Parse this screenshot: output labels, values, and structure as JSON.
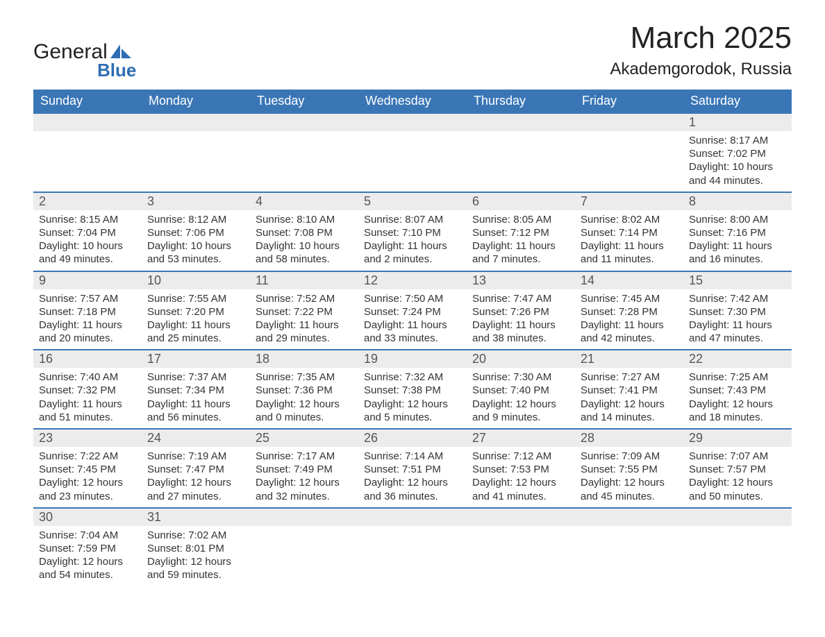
{
  "logo": {
    "word1": "General",
    "word2": "Blue",
    "triangle_color": "#2f6db3",
    "word2_color": "#2f6db3",
    "word1_color": "#222222"
  },
  "header": {
    "month_title": "March 2025",
    "location": "Akademgorodok, Russia"
  },
  "colors": {
    "header_bg": "#3a76b6",
    "header_text": "#ffffff",
    "row_divider": "#3a76b6",
    "daynum_bg": "#ececec",
    "body_text": "#333333",
    "background": "#ffffff"
  },
  "typography": {
    "title_fontsize": 44,
    "location_fontsize": 24,
    "weekday_fontsize": 18,
    "daynum_fontsize": 18,
    "cell_fontsize": 15
  },
  "weekdays": [
    "Sunday",
    "Monday",
    "Tuesday",
    "Wednesday",
    "Thursday",
    "Friday",
    "Saturday"
  ],
  "weeks": [
    [
      null,
      null,
      null,
      null,
      null,
      null,
      {
        "day": "1",
        "sunrise": "Sunrise: 8:17 AM",
        "sunset": "Sunset: 7:02 PM",
        "daylight1": "Daylight: 10 hours",
        "daylight2": "and 44 minutes."
      }
    ],
    [
      {
        "day": "2",
        "sunrise": "Sunrise: 8:15 AM",
        "sunset": "Sunset: 7:04 PM",
        "daylight1": "Daylight: 10 hours",
        "daylight2": "and 49 minutes."
      },
      {
        "day": "3",
        "sunrise": "Sunrise: 8:12 AM",
        "sunset": "Sunset: 7:06 PM",
        "daylight1": "Daylight: 10 hours",
        "daylight2": "and 53 minutes."
      },
      {
        "day": "4",
        "sunrise": "Sunrise: 8:10 AM",
        "sunset": "Sunset: 7:08 PM",
        "daylight1": "Daylight: 10 hours",
        "daylight2": "and 58 minutes."
      },
      {
        "day": "5",
        "sunrise": "Sunrise: 8:07 AM",
        "sunset": "Sunset: 7:10 PM",
        "daylight1": "Daylight: 11 hours",
        "daylight2": "and 2 minutes."
      },
      {
        "day": "6",
        "sunrise": "Sunrise: 8:05 AM",
        "sunset": "Sunset: 7:12 PM",
        "daylight1": "Daylight: 11 hours",
        "daylight2": "and 7 minutes."
      },
      {
        "day": "7",
        "sunrise": "Sunrise: 8:02 AM",
        "sunset": "Sunset: 7:14 PM",
        "daylight1": "Daylight: 11 hours",
        "daylight2": "and 11 minutes."
      },
      {
        "day": "8",
        "sunrise": "Sunrise: 8:00 AM",
        "sunset": "Sunset: 7:16 PM",
        "daylight1": "Daylight: 11 hours",
        "daylight2": "and 16 minutes."
      }
    ],
    [
      {
        "day": "9",
        "sunrise": "Sunrise: 7:57 AM",
        "sunset": "Sunset: 7:18 PM",
        "daylight1": "Daylight: 11 hours",
        "daylight2": "and 20 minutes."
      },
      {
        "day": "10",
        "sunrise": "Sunrise: 7:55 AM",
        "sunset": "Sunset: 7:20 PM",
        "daylight1": "Daylight: 11 hours",
        "daylight2": "and 25 minutes."
      },
      {
        "day": "11",
        "sunrise": "Sunrise: 7:52 AM",
        "sunset": "Sunset: 7:22 PM",
        "daylight1": "Daylight: 11 hours",
        "daylight2": "and 29 minutes."
      },
      {
        "day": "12",
        "sunrise": "Sunrise: 7:50 AM",
        "sunset": "Sunset: 7:24 PM",
        "daylight1": "Daylight: 11 hours",
        "daylight2": "and 33 minutes."
      },
      {
        "day": "13",
        "sunrise": "Sunrise: 7:47 AM",
        "sunset": "Sunset: 7:26 PM",
        "daylight1": "Daylight: 11 hours",
        "daylight2": "and 38 minutes."
      },
      {
        "day": "14",
        "sunrise": "Sunrise: 7:45 AM",
        "sunset": "Sunset: 7:28 PM",
        "daylight1": "Daylight: 11 hours",
        "daylight2": "and 42 minutes."
      },
      {
        "day": "15",
        "sunrise": "Sunrise: 7:42 AM",
        "sunset": "Sunset: 7:30 PM",
        "daylight1": "Daylight: 11 hours",
        "daylight2": "and 47 minutes."
      }
    ],
    [
      {
        "day": "16",
        "sunrise": "Sunrise: 7:40 AM",
        "sunset": "Sunset: 7:32 PM",
        "daylight1": "Daylight: 11 hours",
        "daylight2": "and 51 minutes."
      },
      {
        "day": "17",
        "sunrise": "Sunrise: 7:37 AM",
        "sunset": "Sunset: 7:34 PM",
        "daylight1": "Daylight: 11 hours",
        "daylight2": "and 56 minutes."
      },
      {
        "day": "18",
        "sunrise": "Sunrise: 7:35 AM",
        "sunset": "Sunset: 7:36 PM",
        "daylight1": "Daylight: 12 hours",
        "daylight2": "and 0 minutes."
      },
      {
        "day": "19",
        "sunrise": "Sunrise: 7:32 AM",
        "sunset": "Sunset: 7:38 PM",
        "daylight1": "Daylight: 12 hours",
        "daylight2": "and 5 minutes."
      },
      {
        "day": "20",
        "sunrise": "Sunrise: 7:30 AM",
        "sunset": "Sunset: 7:40 PM",
        "daylight1": "Daylight: 12 hours",
        "daylight2": "and 9 minutes."
      },
      {
        "day": "21",
        "sunrise": "Sunrise: 7:27 AM",
        "sunset": "Sunset: 7:41 PM",
        "daylight1": "Daylight: 12 hours",
        "daylight2": "and 14 minutes."
      },
      {
        "day": "22",
        "sunrise": "Sunrise: 7:25 AM",
        "sunset": "Sunset: 7:43 PM",
        "daylight1": "Daylight: 12 hours",
        "daylight2": "and 18 minutes."
      }
    ],
    [
      {
        "day": "23",
        "sunrise": "Sunrise: 7:22 AM",
        "sunset": "Sunset: 7:45 PM",
        "daylight1": "Daylight: 12 hours",
        "daylight2": "and 23 minutes."
      },
      {
        "day": "24",
        "sunrise": "Sunrise: 7:19 AM",
        "sunset": "Sunset: 7:47 PM",
        "daylight1": "Daylight: 12 hours",
        "daylight2": "and 27 minutes."
      },
      {
        "day": "25",
        "sunrise": "Sunrise: 7:17 AM",
        "sunset": "Sunset: 7:49 PM",
        "daylight1": "Daylight: 12 hours",
        "daylight2": "and 32 minutes."
      },
      {
        "day": "26",
        "sunrise": "Sunrise: 7:14 AM",
        "sunset": "Sunset: 7:51 PM",
        "daylight1": "Daylight: 12 hours",
        "daylight2": "and 36 minutes."
      },
      {
        "day": "27",
        "sunrise": "Sunrise: 7:12 AM",
        "sunset": "Sunset: 7:53 PM",
        "daylight1": "Daylight: 12 hours",
        "daylight2": "and 41 minutes."
      },
      {
        "day": "28",
        "sunrise": "Sunrise: 7:09 AM",
        "sunset": "Sunset: 7:55 PM",
        "daylight1": "Daylight: 12 hours",
        "daylight2": "and 45 minutes."
      },
      {
        "day": "29",
        "sunrise": "Sunrise: 7:07 AM",
        "sunset": "Sunset: 7:57 PM",
        "daylight1": "Daylight: 12 hours",
        "daylight2": "and 50 minutes."
      }
    ],
    [
      {
        "day": "30",
        "sunrise": "Sunrise: 7:04 AM",
        "sunset": "Sunset: 7:59 PM",
        "daylight1": "Daylight: 12 hours",
        "daylight2": "and 54 minutes."
      },
      {
        "day": "31",
        "sunrise": "Sunrise: 7:02 AM",
        "sunset": "Sunset: 8:01 PM",
        "daylight1": "Daylight: 12 hours",
        "daylight2": "and 59 minutes."
      },
      null,
      null,
      null,
      null,
      null
    ]
  ]
}
